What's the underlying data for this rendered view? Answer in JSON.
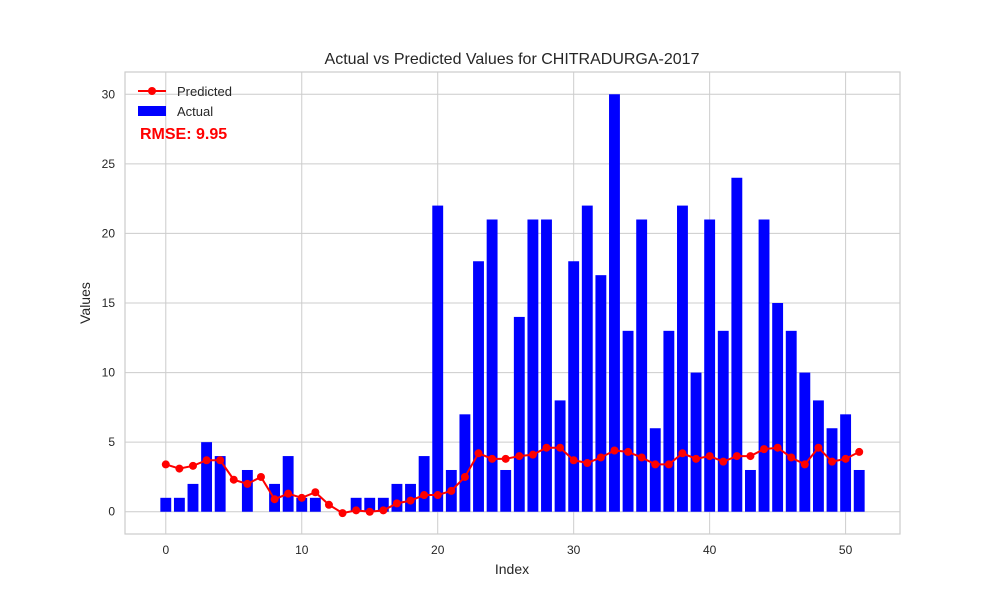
{
  "chart_data": {
    "type": "bar",
    "title": "Actual vs Predicted Values for CHITRADURGA-2017",
    "xlabel": "Index",
    "ylabel": "Values",
    "xlim": [
      -3,
      54
    ],
    "ylim": [
      -1.6,
      31.6
    ],
    "x_ticks": [
      0,
      10,
      20,
      30,
      40,
      50
    ],
    "y_ticks": [
      0,
      5,
      10,
      15,
      20,
      25,
      30
    ],
    "grid": true,
    "legend_position": "top-left",
    "annotation": "RMSE: 9.95",
    "series": [
      {
        "name": "Actual",
        "type": "bar",
        "color": "#0000ff",
        "values": [
          1,
          1,
          2,
          5,
          4,
          0,
          3,
          0,
          2,
          4,
          1,
          1,
          0,
          0,
          1,
          1,
          1,
          2,
          2,
          4,
          22,
          3,
          7,
          18,
          21,
          3,
          14,
          21,
          21,
          8,
          18,
          22,
          17,
          30,
          13,
          21,
          6,
          13,
          22,
          10,
          21,
          13,
          24,
          3,
          21,
          15,
          13,
          10,
          8,
          6,
          7,
          3
        ]
      },
      {
        "name": "Predicted",
        "type": "line",
        "color": "#ff0000",
        "values": [
          3.4,
          3.1,
          3.3,
          3.7,
          3.7,
          2.3,
          2.0,
          2.5,
          0.9,
          1.3,
          1.0,
          1.4,
          0.5,
          -0.1,
          0.1,
          0.0,
          0.1,
          0.6,
          0.8,
          1.2,
          1.2,
          1.5,
          2.5,
          4.2,
          3.8,
          3.8,
          4.0,
          4.1,
          4.6,
          4.6,
          3.7,
          3.5,
          3.9,
          4.4,
          4.3,
          3.9,
          3.4,
          3.4,
          4.2,
          3.8,
          4.0,
          3.6,
          4.0,
          4.0,
          4.5,
          4.6,
          3.9,
          3.4,
          4.6,
          3.6,
          3.8,
          4.3
        ]
      }
    ]
  }
}
